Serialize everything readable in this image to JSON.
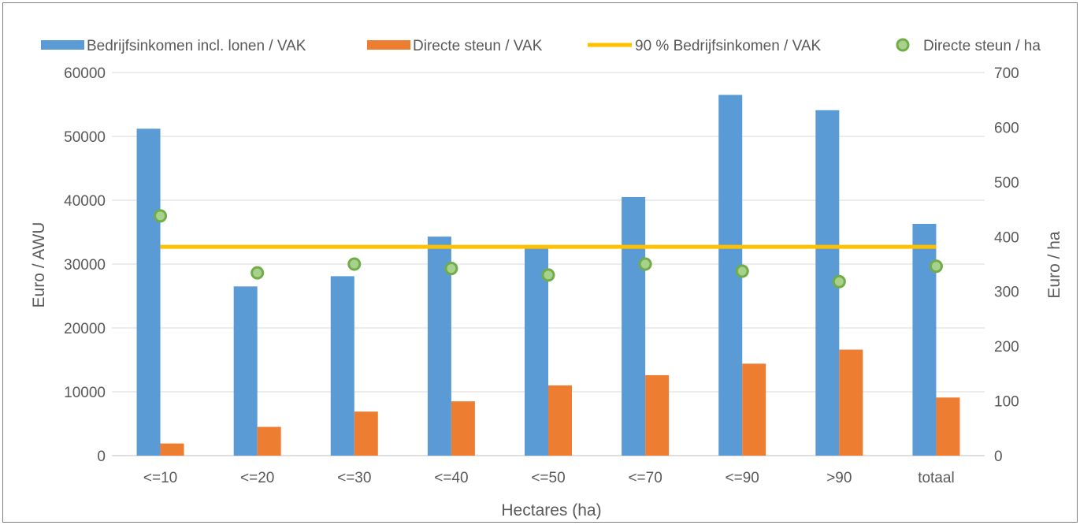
{
  "chart_data": {
    "type": "bar",
    "categories": [
      "<=10",
      "<=20",
      "<=30",
      "<=40",
      "<=50",
      "<=70",
      "<=90",
      ">90",
      "totaal"
    ],
    "xlabel": "Hectares (ha)",
    "ylabel": "Euro / AWU",
    "y2label": "Euro / ha",
    "ylim": [
      0,
      60000
    ],
    "y2lim": [
      0,
      700
    ],
    "yticks": [
      "0",
      "10000",
      "20000",
      "30000",
      "40000",
      "50000",
      "60000"
    ],
    "y2ticks": [
      "0",
      "100",
      "200",
      "300",
      "400",
      "500",
      "600",
      "700"
    ],
    "grid": true,
    "legend_position": "top",
    "series": [
      {
        "name": "Bedrijfsinkomen incl. lonen / VAK",
        "type": "bar",
        "axis": "left",
        "color": "#5b9bd5",
        "values": [
          51200,
          26500,
          28100,
          34300,
          32900,
          40500,
          56500,
          54100,
          36300
        ]
      },
      {
        "name": "Directe steun / VAK",
        "type": "bar",
        "axis": "left",
        "color": "#ed7d31",
        "values": [
          1900,
          4500,
          6900,
          8500,
          11000,
          12600,
          14400,
          16600,
          9100
        ]
      },
      {
        "name": "90 % Bedrijfsinkomen / VAK",
        "type": "line",
        "axis": "left",
        "color": "#ffc000",
        "values": [
          32700,
          32700,
          32700,
          32700,
          32700,
          32700,
          32700,
          32700,
          32700
        ]
      },
      {
        "name": "Directe steun / ha",
        "type": "scatter",
        "axis": "right",
        "color": "#70ad47",
        "inner_color": "#a9d18e",
        "values": [
          438,
          334,
          350,
          342,
          330,
          350,
          337,
          318,
          346
        ]
      }
    ]
  }
}
